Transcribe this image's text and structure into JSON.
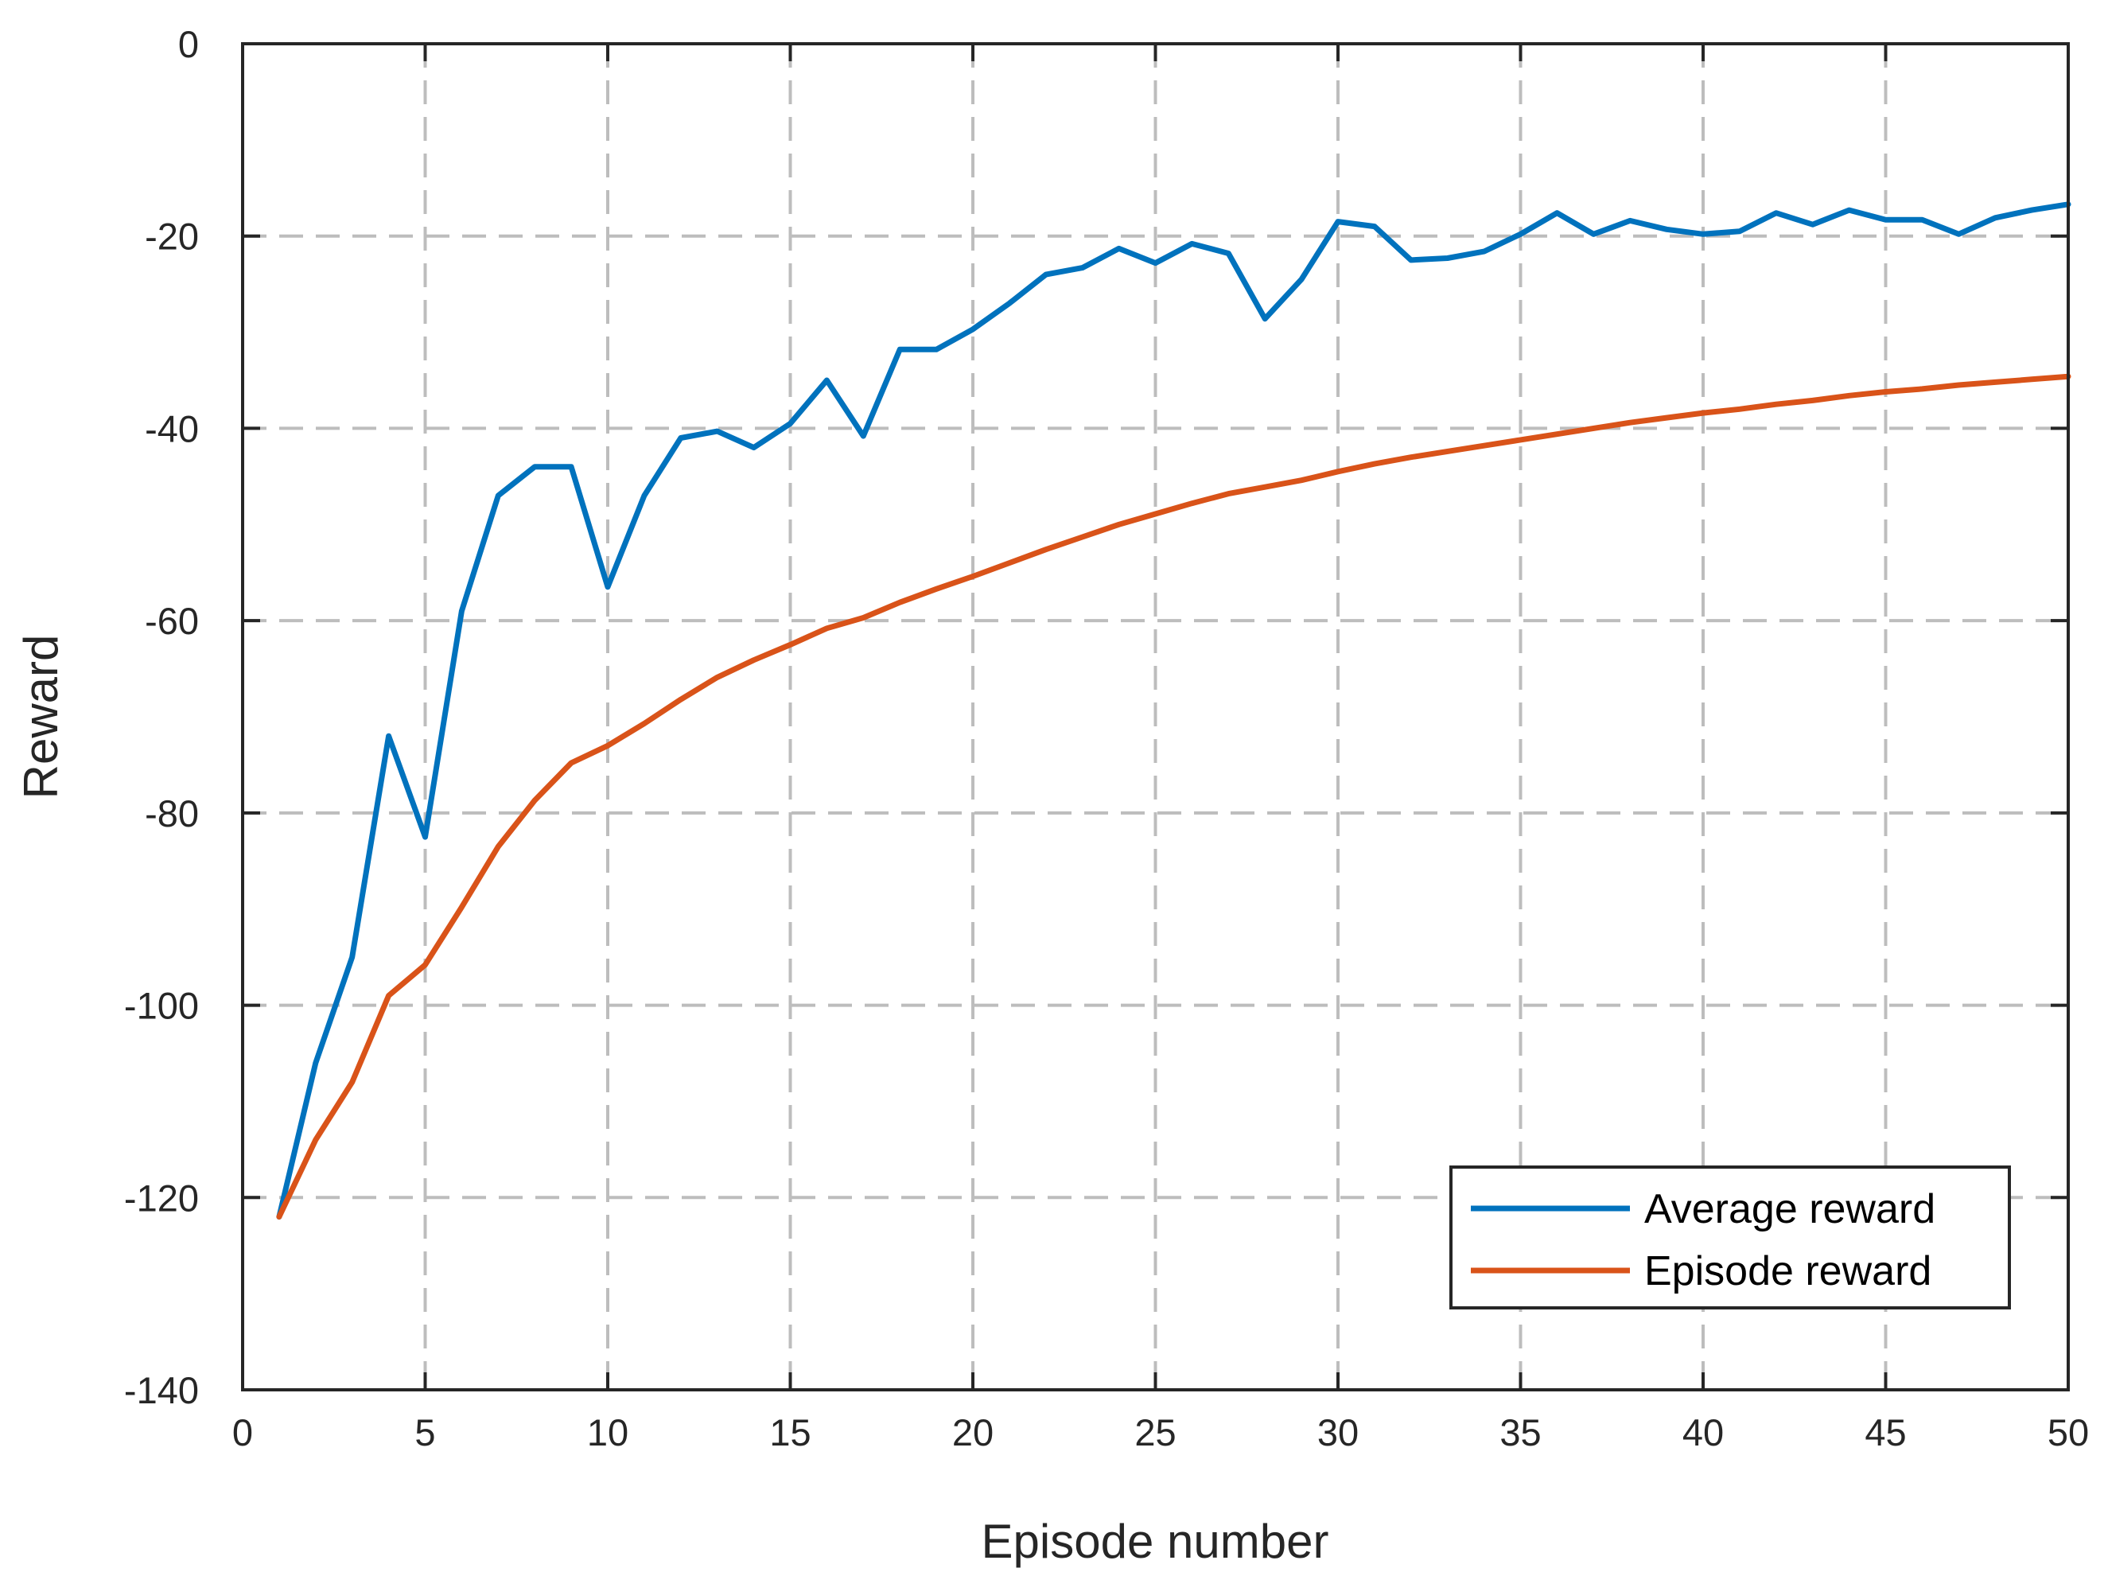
{
  "chart_data": {
    "type": "line",
    "title": "",
    "xlabel": "Episode number",
    "ylabel": "Reward",
    "xlim": [
      0,
      50
    ],
    "ylim": [
      -140,
      0
    ],
    "xticks": [
      0,
      5,
      10,
      15,
      20,
      25,
      30,
      35,
      40,
      45,
      50
    ],
    "yticks": [
      0,
      -20,
      -40,
      -60,
      -80,
      -100,
      -120,
      -140
    ],
    "grid": true,
    "legend_position": "bottom-right",
    "x": [
      1,
      2,
      3,
      4,
      5,
      6,
      7,
      8,
      9,
      10,
      11,
      12,
      13,
      14,
      15,
      16,
      17,
      18,
      19,
      20,
      21,
      22,
      23,
      24,
      25,
      26,
      27,
      28,
      29,
      30,
      31,
      32,
      33,
      34,
      35,
      36,
      37,
      38,
      39,
      40,
      41,
      42,
      43,
      44,
      45,
      46,
      47,
      48,
      49,
      50
    ],
    "series": [
      {
        "name": "Average reward",
        "color": "#0072BD",
        "values": [
          -122,
          -106,
          -95,
          -72,
          -82.5,
          -59,
          -47,
          -44,
          -44,
          -56.5,
          -47,
          -41,
          -40.3,
          -42,
          -39.5,
          -35,
          -40.8,
          -31.8,
          -31.8,
          -29.7,
          -27,
          -24,
          -23.3,
          -21.3,
          -22.8,
          -20.8,
          -21.8,
          -28.6,
          -24.5,
          -18.5,
          -19,
          -22.5,
          -22.3,
          -21.6,
          -19.8,
          -17.6,
          -19.8,
          -18.4,
          -19.3,
          -19.8,
          -19.5,
          -17.6,
          -18.8,
          -17.3,
          -18.3,
          -18.3,
          -19.8,
          -18.1,
          -17.3,
          -16.7
        ]
      },
      {
        "name": "Episode reward",
        "color": "#D95319",
        "values": [
          -122,
          -114,
          -108,
          -99,
          -95.8,
          -89.8,
          -83.5,
          -78.7,
          -74.8,
          -73,
          -70.7,
          -68.2,
          -65.9,
          -64.1,
          -62.5,
          -60.8,
          -59.7,
          -58.1,
          -56.7,
          -55.4,
          -54,
          -52.6,
          -51.3,
          -50,
          -48.9,
          -47.8,
          -46.8,
          -46.1,
          -45.4,
          -44.5,
          -43.7,
          -43,
          -42.4,
          -41.8,
          -41.2,
          -40.6,
          -40,
          -39.4,
          -38.9,
          -38.4,
          -38,
          -37.5,
          -37.1,
          -36.6,
          -36.2,
          -35.9,
          -35.5,
          -35.2,
          -34.9,
          -34.6
        ]
      }
    ]
  }
}
